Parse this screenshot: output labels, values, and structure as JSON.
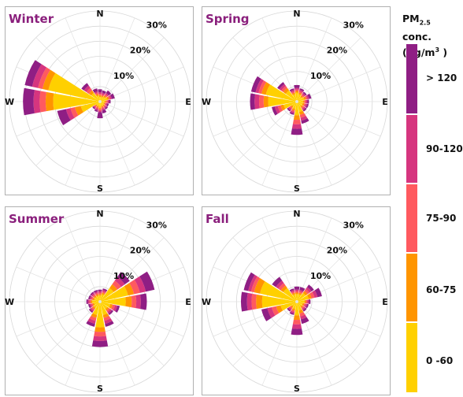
{
  "legend": {
    "title_prefix": "PM",
    "title_sub": "2.5",
    "title_suffix": " conc.",
    "unit_prefix": "(μg/m",
    "unit_sup": "3",
    "unit_suffix": " )",
    "bins": [
      "0 -60",
      "60-75",
      "75-90",
      "90-120",
      "> 120"
    ],
    "colors": [
      "#ffd000",
      "#ff9500",
      "#ff5a5f",
      "#d6357f",
      "#8f1e84"
    ]
  },
  "chart_data": {
    "type": "polar-stacked-bar",
    "directions": [
      "N",
      "NNE",
      "NE",
      "ENE",
      "E",
      "ESE",
      "SE",
      "SSE",
      "S",
      "SSW",
      "SW",
      "WSW",
      "W",
      "WNW",
      "NW",
      "NNW"
    ],
    "compass_labels": [
      "N",
      "E",
      "S",
      "W"
    ],
    "radial_ticks": [
      10,
      20,
      30
    ],
    "radial_tick_labels": [
      "10%",
      "20%",
      "30%"
    ],
    "rmax": 30,
    "bins": [
      "0 -60",
      "60-75",
      "75-90",
      "90-120",
      "> 120"
    ],
    "panels": [
      {
        "title": "Winter",
        "stacks": [
          [
            1,
            0.6,
            0.5,
            0.5,
            1
          ],
          [
            1,
            0.5,
            0.5,
            0.5,
            0.8
          ],
          [
            1.5,
            0.5,
            0.5,
            0.5,
            1
          ],
          [
            2,
            0.5,
            0.5,
            0.5,
            1
          ],
          [
            1,
            0.5,
            0.5,
            0.5,
            0.5
          ],
          [
            0.8,
            0.4,
            0.4,
            0.4,
            0.5
          ],
          [
            1,
            0.4,
            0.4,
            0.4,
            0.5
          ],
          [
            1,
            0.5,
            0.5,
            0.5,
            1
          ],
          [
            1.5,
            0.5,
            0.5,
            0.5,
            2
          ],
          [
            1,
            0.5,
            0.5,
            0.5,
            0.5
          ],
          [
            1,
            0.4,
            0.4,
            0.4,
            0.4
          ],
          [
            6,
            2,
            1.5,
            1.5,
            3
          ],
          [
            15,
            2.5,
            2,
            2,
            3.5
          ],
          [
            17,
            2,
            1.5,
            2,
            2.5
          ],
          [
            3,
            1,
            1,
            1,
            1
          ],
          [
            1.5,
            0.5,
            0.5,
            0.5,
            1
          ]
        ]
      },
      {
        "title": "Spring",
        "stacks": [
          [
            2.5,
            0.5,
            0.5,
            0.5,
            1
          ],
          [
            2,
            0.5,
            0.5,
            0.5,
            0.5
          ],
          [
            1.5,
            0.5,
            0.5,
            0.5,
            0.5
          ],
          [
            2,
            0.6,
            0.5,
            0.5,
            0.8
          ],
          [
            1.5,
            0.5,
            0.5,
            0.5,
            0.5
          ],
          [
            1.5,
            0.5,
            0.5,
            0.5,
            0.5
          ],
          [
            1.5,
            0.5,
            0.5,
            0.5,
            0.5
          ],
          [
            3,
            1,
            1,
            1,
            1
          ],
          [
            4,
            1.5,
            1.5,
            1.5,
            2
          ],
          [
            2,
            0.5,
            0.5,
            0.5,
            0.5
          ],
          [
            1.5,
            0.5,
            0.5,
            0.5,
            0.5
          ],
          [
            4,
            1,
            1,
            1,
            1
          ],
          [
            9,
            1.5,
            1.5,
            1.5,
            1.5
          ],
          [
            10,
            1.5,
            1,
            1,
            1.5
          ],
          [
            4,
            1,
            0.8,
            0.8,
            0.8
          ],
          [
            2,
            0.5,
            0.5,
            0.5,
            0.5
          ]
        ]
      },
      {
        "title": "Summer",
        "stacks": [
          [
            1.5,
            0.5,
            0.5,
            0.5,
            0.5
          ],
          [
            2,
            0.5,
            0.5,
            0.5,
            0.5
          ],
          [
            5,
            1.5,
            1.5,
            1.5,
            2
          ],
          [
            9,
            2,
            2,
            2,
            3
          ],
          [
            8,
            2,
            1.5,
            1.5,
            2
          ],
          [
            3,
            0.8,
            0.8,
            0.8,
            0.8
          ],
          [
            2.5,
            0.6,
            0.6,
            0.6,
            0.6
          ],
          [
            4,
            1,
            1,
            1,
            1
          ],
          [
            8,
            1.5,
            1.5,
            1.5,
            2
          ],
          [
            4,
            1,
            1,
            1,
            1
          ],
          [
            2,
            0.5,
            0.5,
            0.5,
            0.5
          ],
          [
            1.5,
            0.5,
            0.5,
            0.5,
            0.5
          ],
          [
            2,
            0.5,
            0.5,
            0.5,
            0.5
          ],
          [
            1.5,
            0.5,
            0.5,
            0.5,
            0.5
          ],
          [
            1.5,
            0.5,
            0.5,
            0.5,
            0.5
          ],
          [
            1.5,
            0.5,
            0.5,
            0.5,
            0.5
          ]
        ]
      },
      {
        "title": "Fall",
        "stacks": [
          [
            2,
            0.5,
            0.5,
            0.5,
            1
          ],
          [
            2,
            0.5,
            0.5,
            0.5,
            1
          ],
          [
            3,
            0.8,
            0.8,
            0.8,
            1
          ],
          [
            3.5,
            1,
            1,
            1,
            1.5
          ],
          [
            2,
            0.5,
            0.5,
            0.5,
            0.5
          ],
          [
            1.5,
            0.5,
            0.5,
            0.5,
            0.5
          ],
          [
            1.5,
            0.5,
            0.5,
            0.5,
            0.5
          ],
          [
            2.5,
            1,
            1,
            1,
            1.5
          ],
          [
            4,
            1.5,
            1.5,
            1.5,
            2
          ],
          [
            2,
            0.5,
            0.5,
            0.5,
            0.5
          ],
          [
            1.5,
            0.5,
            0.5,
            0.5,
            0.5
          ],
          [
            5,
            1.5,
            1.5,
            1.5,
            2
          ],
          [
            11,
            2,
            1.5,
            1.5,
            2
          ],
          [
            12,
            2,
            1,
            1,
            1.5
          ],
          [
            5,
            1,
            1,
            1,
            1.5
          ],
          [
            2,
            0.5,
            0.5,
            0.5,
            0.5
          ]
        ]
      }
    ]
  }
}
